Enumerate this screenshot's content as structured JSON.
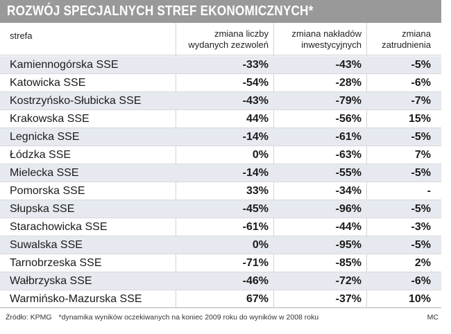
{
  "title": "ROZWÓJ SPECJALNYCH STREF EKONOMICZNYCH*",
  "chart_data": {
    "type": "table",
    "title": "ROZWÓJ SPECJALNYCH STREF EKONOMICZNYCH*",
    "columns": [
      {
        "key": "strefa",
        "label_lines": [
          "strefa"
        ]
      },
      {
        "key": "zezwolenia",
        "label_lines": [
          "zmiana liczby",
          "wydanych zezwoleń"
        ]
      },
      {
        "key": "naklady",
        "label_lines": [
          "zmiana nakładów",
          "inwestycyjnych"
        ]
      },
      {
        "key": "zatrudnienie",
        "label_lines": [
          "zmiana",
          "zatrudnienia"
        ]
      }
    ],
    "rows": [
      {
        "strefa": "Kamiennogórska SSE",
        "zezwolenia": "-33%",
        "naklady": "-43%",
        "zatrudnienie": "-5%"
      },
      {
        "strefa": "Katowicka SSE",
        "zezwolenia": "-54%",
        "naklady": "-28%",
        "zatrudnienie": "-6%"
      },
      {
        "strefa": "Kostrzyńsko-Słubicka SSE",
        "zezwolenia": "-43%",
        "naklady": "-79%",
        "zatrudnienie": "-7%"
      },
      {
        "strefa": "Krakowska SSE",
        "zezwolenia": "44%",
        "naklady": "-56%",
        "zatrudnienie": "15%"
      },
      {
        "strefa": "Legnicka SSE",
        "zezwolenia": "-14%",
        "naklady": "-61%",
        "zatrudnienie": "-5%"
      },
      {
        "strefa": "Łódzka SSE",
        "zezwolenia": "0%",
        "naklady": "-63%",
        "zatrudnienie": "7%"
      },
      {
        "strefa": "Mielecka SSE",
        "zezwolenia": "-14%",
        "naklady": "-55%",
        "zatrudnienie": "-5%"
      },
      {
        "strefa": "Pomorska SSE",
        "zezwolenia": "33%",
        "naklady": "-34%",
        "zatrudnienie": "-"
      },
      {
        "strefa": "Słupska SSE",
        "zezwolenia": "-45%",
        "naklady": "-96%",
        "zatrudnienie": "-5%"
      },
      {
        "strefa": "Starachowicka SSE",
        "zezwolenia": "-61%",
        "naklady": "-44%",
        "zatrudnienie": "-3%"
      },
      {
        "strefa": "Suwalska SSE",
        "zezwolenia": "0%",
        "naklady": "-95%",
        "zatrudnienie": "-5%"
      },
      {
        "strefa": "Tarnobrzeska SSE",
        "zezwolenia": "-71%",
        "naklady": "-85%",
        "zatrudnienie": "2%"
      },
      {
        "strefa": "Wałbrzyska SSE",
        "zezwolenia": "-46%",
        "naklady": "-72%",
        "zatrudnienie": "-6%"
      },
      {
        "strefa": "Warmińsko-Mazurska SSE",
        "zezwolenia": "67%",
        "naklady": "-37%",
        "zatrudnienie": "10%"
      }
    ]
  },
  "footer": {
    "source": "Źródło: KPMG",
    "note": "*dynamika wyników oczekiwanych na koniec 2009 roku do wyników w 2008 roku",
    "credit": "MC"
  },
  "colors": {
    "title_bg": "#999999",
    "title_fg": "#ffffff",
    "row_shade": "#e6eaf0"
  }
}
